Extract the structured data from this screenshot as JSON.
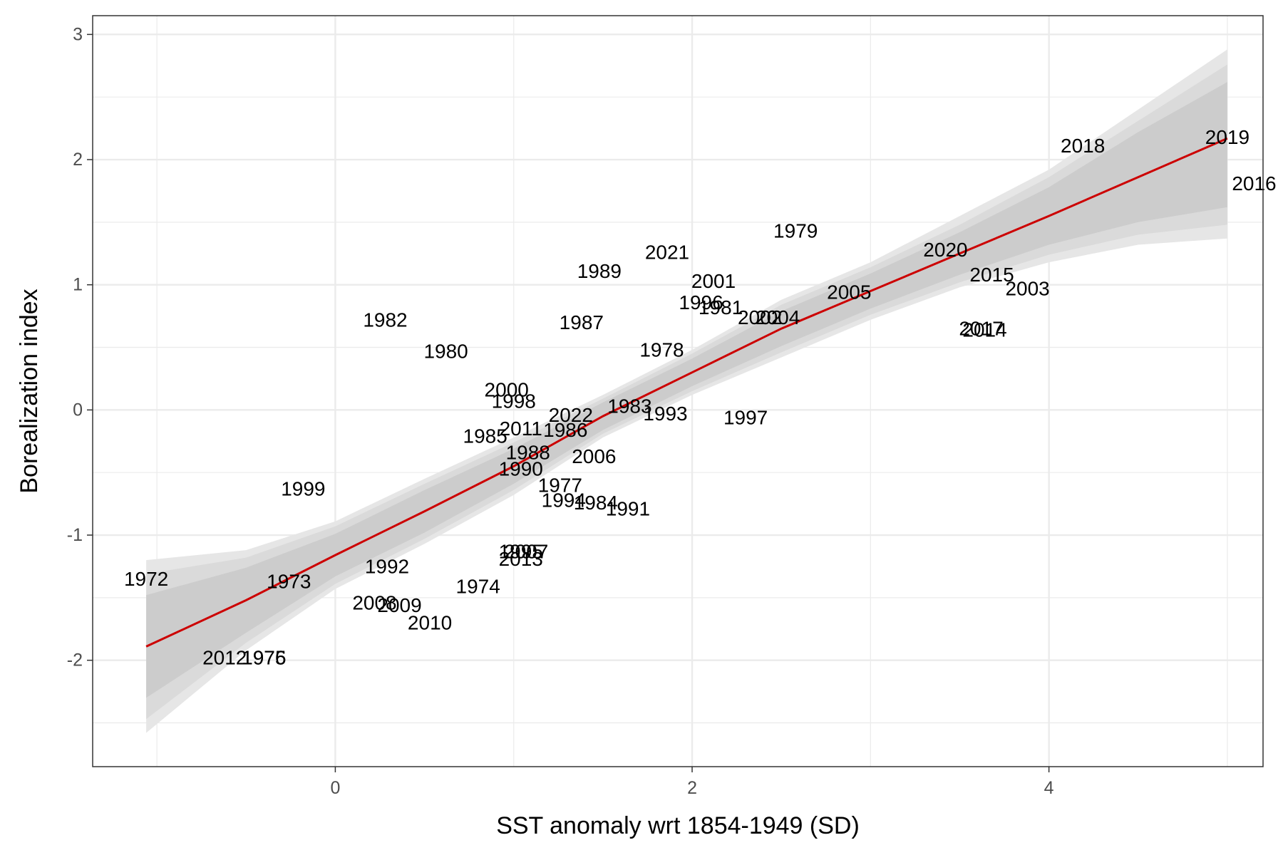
{
  "chart_data": {
    "type": "scatter",
    "title": "",
    "xlabel": "SST anomaly wrt 1854-1949 (SD)",
    "ylabel": "Borealization index",
    "xlim": [
      -1.36,
      5.2
    ],
    "ylim": [
      -2.85,
      3.15
    ],
    "xticks": [
      0,
      2,
      4
    ],
    "yticks": [
      -2,
      -1,
      0,
      1,
      2,
      3
    ],
    "grid": true,
    "legend": "none",
    "fit_color": "#cc0000",
    "band_colors": [
      "#e6e6e6",
      "#dadada",
      "#cccccc"
    ],
    "points": [
      {
        "label": "1972",
        "x": -1.06,
        "y": -1.35
      },
      {
        "label": "1973",
        "x": -0.26,
        "y": -1.37
      },
      {
        "label": "2012",
        "x": -0.62,
        "y": -1.98
      },
      {
        "label": "1976",
        "x": -0.4,
        "y": -1.98
      },
      {
        "label": "1975",
        "x": -0.4,
        "y": -1.98
      },
      {
        "label": "1999",
        "x": -0.18,
        "y": -0.63
      },
      {
        "label": "1982",
        "x": 0.28,
        "y": 0.72
      },
      {
        "label": "1980",
        "x": 0.62,
        "y": 0.47
      },
      {
        "label": "1992",
        "x": 0.29,
        "y": -1.25
      },
      {
        "label": "2008",
        "x": 0.22,
        "y": -1.54
      },
      {
        "label": "2009",
        "x": 0.36,
        "y": -1.56
      },
      {
        "label": "2010",
        "x": 0.53,
        "y": -1.7
      },
      {
        "label": "1974",
        "x": 0.8,
        "y": -1.41
      },
      {
        "label": "2000",
        "x": 0.96,
        "y": 0.16
      },
      {
        "label": "1998",
        "x": 1.0,
        "y": 0.07
      },
      {
        "label": "1985",
        "x": 0.84,
        "y": -0.21
      },
      {
        "label": "2011",
        "x": 1.04,
        "y": -0.15
      },
      {
        "label": "1986",
        "x": 1.29,
        "y": -0.16
      },
      {
        "label": "2022",
        "x": 1.32,
        "y": -0.04
      },
      {
        "label": "1988",
        "x": 1.08,
        "y": -0.34
      },
      {
        "label": "2006",
        "x": 1.45,
        "y": -0.37
      },
      {
        "label": "1990",
        "x": 1.04,
        "y": -0.47
      },
      {
        "label": "1977",
        "x": 1.26,
        "y": -0.6
      },
      {
        "label": "1994",
        "x": 1.28,
        "y": -0.72
      },
      {
        "label": "1984",
        "x": 1.46,
        "y": -0.74
      },
      {
        "label": "1991",
        "x": 1.64,
        "y": -0.79
      },
      {
        "label": "1995",
        "x": 1.04,
        "y": -1.13
      },
      {
        "label": "2007",
        "x": 1.07,
        "y": -1.13
      },
      {
        "label": "2013",
        "x": 1.04,
        "y": -1.19
      },
      {
        "label": "1989",
        "x": 1.48,
        "y": 1.11
      },
      {
        "label": "1987",
        "x": 1.38,
        "y": 0.7
      },
      {
        "label": "1978",
        "x": 1.83,
        "y": 0.48
      },
      {
        "label": "1983",
        "x": 1.65,
        "y": 0.03
      },
      {
        "label": "1993",
        "x": 1.85,
        "y": -0.03
      },
      {
        "label": "2021",
        "x": 1.86,
        "y": 1.26
      },
      {
        "label": "2001",
        "x": 2.12,
        "y": 1.03
      },
      {
        "label": "1996",
        "x": 2.05,
        "y": 0.86
      },
      {
        "label": "1981",
        "x": 2.16,
        "y": 0.82
      },
      {
        "label": "2002",
        "x": 2.38,
        "y": 0.74
      },
      {
        "label": "2004",
        "x": 2.48,
        "y": 0.74
      },
      {
        "label": "1997",
        "x": 2.3,
        "y": -0.06
      },
      {
        "label": "1979",
        "x": 2.58,
        "y": 1.43
      },
      {
        "label": "2005",
        "x": 2.88,
        "y": 0.94
      },
      {
        "label": "2020",
        "x": 3.42,
        "y": 1.28
      },
      {
        "label": "2015",
        "x": 3.68,
        "y": 1.08
      },
      {
        "label": "2003",
        "x": 3.88,
        "y": 0.97
      },
      {
        "label": "2017",
        "x": 3.62,
        "y": 0.65
      },
      {
        "label": "2014",
        "x": 3.64,
        "y": 0.64
      },
      {
        "label": "2018",
        "x": 4.19,
        "y": 2.11
      },
      {
        "label": "2019",
        "x": 5.0,
        "y": 2.18
      },
      {
        "label": "2016",
        "x": 5.15,
        "y": 1.81
      }
    ],
    "fit": {
      "x": [
        -1.06,
        -0.5,
        0.0,
        0.5,
        1.0,
        1.5,
        2.0,
        2.5,
        3.0,
        3.5,
        4.0,
        4.5,
        5.0
      ],
      "y": [
        -1.89,
        -1.52,
        -1.16,
        -0.81,
        -0.45,
        -0.05,
        0.3,
        0.65,
        0.95,
        1.25,
        1.55,
        1.86,
        2.17
      ],
      "lower_95": [
        -2.58,
        -1.92,
        -1.43,
        -1.07,
        -0.68,
        -0.22,
        0.12,
        0.42,
        0.72,
        0.98,
        1.18,
        1.32,
        1.37
      ],
      "upper_95": [
        -1.2,
        -1.12,
        -0.89,
        -0.55,
        -0.22,
        0.12,
        0.48,
        0.88,
        1.18,
        1.55,
        1.92,
        2.4,
        2.88
      ],
      "lower_90": [
        -2.47,
        -1.86,
        -1.39,
        -1.03,
        -0.64,
        -0.19,
        0.15,
        0.46,
        0.76,
        1.02,
        1.24,
        1.4,
        1.48
      ],
      "upper_90": [
        -1.31,
        -1.18,
        -0.93,
        -0.59,
        -0.26,
        0.09,
        0.45,
        0.84,
        1.14,
        1.48,
        1.86,
        2.31,
        2.76
      ],
      "lower_80": [
        -2.3,
        -1.78,
        -1.33,
        -0.98,
        -0.59,
        -0.16,
        0.19,
        0.51,
        0.81,
        1.08,
        1.32,
        1.5,
        1.62
      ],
      "upper_80": [
        -1.48,
        -1.26,
        -0.99,
        -0.64,
        -0.31,
        0.06,
        0.41,
        0.79,
        1.09,
        1.42,
        1.78,
        2.22,
        2.62
      ]
    }
  }
}
